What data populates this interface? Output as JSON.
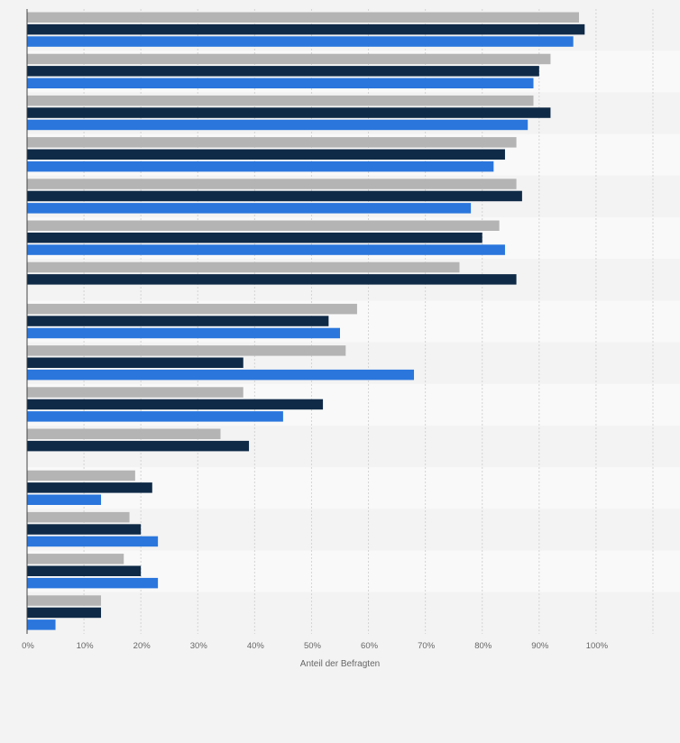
{
  "chart_data": {
    "type": "bar",
    "orientation": "horizontal",
    "xlabel": "Anteil der Befragten",
    "ylabel": "",
    "xlim": [
      0,
      110
    ],
    "x_ticks": [
      0,
      10,
      20,
      30,
      40,
      50,
      60,
      70,
      80,
      90,
      100
    ],
    "x_tick_labels": [
      "0%",
      "10%",
      "20%",
      "30%",
      "40%",
      "50%",
      "60%",
      "70%",
      "80%",
      "90%",
      "100%"
    ],
    "categories": [
      "",
      "",
      "",
      "",
      "",
      "",
      "",
      "",
      "",
      "",
      "",
      "",
      "",
      "",
      ""
    ],
    "series": [
      {
        "color": "#b4b4b4",
        "values": [
          97,
          92,
          89,
          86,
          86,
          83,
          76,
          58,
          56,
          38,
          34,
          19,
          18,
          17,
          13
        ]
      },
      {
        "color": "#0f2a47",
        "values": [
          98,
          90,
          92,
          84,
          87,
          80,
          86,
          53,
          38,
          52,
          39,
          22,
          20,
          20,
          13
        ]
      },
      {
        "color": "#2a76dd",
        "values": [
          96,
          89,
          88,
          82,
          78,
          84,
          null,
          55,
          68,
          45,
          null,
          13,
          23,
          23,
          5
        ]
      }
    ],
    "grid": true,
    "legend": "none"
  }
}
